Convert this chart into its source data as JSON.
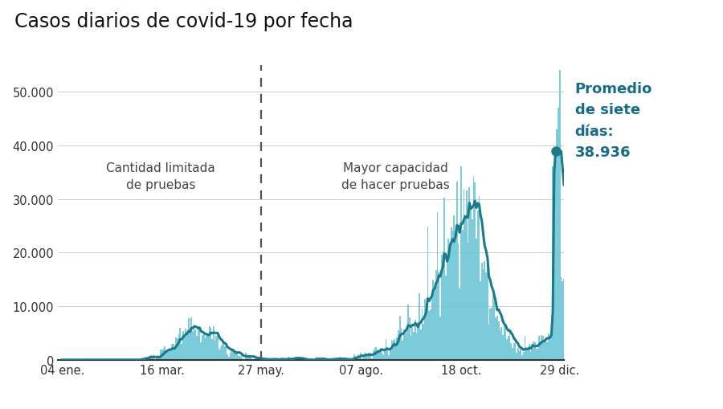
{
  "title": "Casos diarios de covid-19 por fecha",
  "title_fontsize": 17,
  "bar_color": "#6ec6d8",
  "line_color": "#1a7a8a",
  "dot_color": "#1a7a8a",
  "background_color": "#ffffff",
  "annotation_color": "#1a6b8a",
  "ylim": [
    0,
    55000
  ],
  "yticks": [
    0,
    10000,
    20000,
    30000,
    40000,
    50000
  ],
  "ytick_labels": [
    "0",
    "10.000",
    "20.000",
    "30.000",
    "40.000",
    "50.000"
  ],
  "xtick_labels": [
    "04 ene.",
    "16 mar.",
    "27 may.",
    "07 ago.",
    "18 oct.",
    "29 dic."
  ],
  "xtick_positions": [
    0,
    72,
    143,
    215,
    287,
    358
  ],
  "label1_text": "Cantidad limitada\nde pruebas",
  "label2_text": "Mayor capacidad\nde hacer pruebas",
  "grid_color": "#cccccc",
  "spine_color": "#333333",
  "dot_y": 38936,
  "dot_x": 355
}
